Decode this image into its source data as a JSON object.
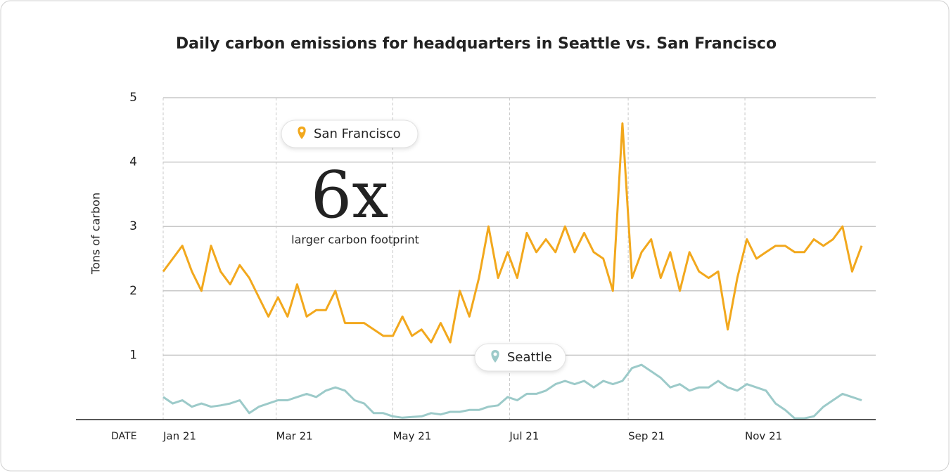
{
  "chart_data": {
    "type": "line",
    "title": "Daily carbon emissions for headquarters in Seattle vs. San Francisco",
    "x_label": "DATE",
    "y_label": "Tons of carbon",
    "annotations": {
      "big": "6x",
      "small": "larger carbon footprint"
    },
    "x": [
      0,
      5,
      10,
      15,
      20,
      25,
      30,
      35,
      40,
      45,
      50,
      55,
      60,
      65,
      70,
      75,
      80,
      85,
      90,
      95,
      100,
      105,
      110,
      115,
      120,
      125,
      130,
      135,
      140,
      145,
      150,
      155,
      160,
      165,
      170,
      175,
      180,
      185,
      190,
      195,
      200,
      205,
      210,
      215,
      220,
      225,
      230,
      235,
      240,
      245,
      250,
      255,
      260,
      265,
      270,
      275,
      280,
      285,
      290,
      295,
      300,
      305,
      310,
      315,
      320,
      325,
      330,
      335,
      340,
      345,
      350,
      355,
      360,
      365
    ],
    "series": [
      {
        "name": "San Francisco",
        "color": "#f2a81d",
        "values": [
          2.3,
          2.5,
          2.7,
          2.3,
          2.0,
          2.7,
          2.3,
          2.1,
          2.4,
          2.2,
          1.9,
          1.6,
          1.9,
          1.6,
          2.1,
          1.6,
          1.7,
          1.7,
          2.0,
          1.5,
          1.5,
          1.5,
          1.4,
          1.3,
          1.3,
          1.6,
          1.3,
          1.4,
          1.2,
          1.5,
          1.2,
          2.0,
          1.6,
          2.2,
          3.0,
          2.2,
          2.6,
          2.2,
          2.9,
          2.6,
          2.8,
          2.6,
          3.0,
          2.6,
          2.9,
          2.6,
          2.5,
          2.0,
          4.6,
          2.2,
          2.6,
          2.8,
          2.2,
          2.6,
          2.0,
          2.6,
          2.3,
          2.2,
          2.3,
          1.4,
          2.2,
          2.8,
          2.5,
          2.6,
          2.7,
          2.7,
          2.6,
          2.6,
          2.8,
          2.7,
          2.8,
          3.0,
          2.3,
          2.7
        ]
      },
      {
        "name": "Seattle",
        "color": "#9ccac9",
        "values": [
          0.35,
          0.25,
          0.3,
          0.2,
          0.25,
          0.2,
          0.22,
          0.25,
          0.3,
          0.1,
          0.2,
          0.25,
          0.3,
          0.3,
          0.35,
          0.4,
          0.35,
          0.45,
          0.5,
          0.45,
          0.3,
          0.25,
          0.1,
          0.1,
          0.05,
          0.03,
          0.04,
          0.05,
          0.1,
          0.08,
          0.12,
          0.12,
          0.15,
          0.15,
          0.2,
          0.22,
          0.35,
          0.3,
          0.4,
          0.4,
          0.45,
          0.55,
          0.6,
          0.55,
          0.6,
          0.5,
          0.6,
          0.55,
          0.6,
          0.8,
          0.85,
          0.75,
          0.65,
          0.5,
          0.55,
          0.45,
          0.5,
          0.5,
          0.6,
          0.5,
          0.45,
          0.55,
          0.5,
          0.45,
          0.25,
          0.15,
          0.02,
          0.02,
          0.05,
          0.2,
          0.3,
          0.4,
          0.35,
          0.3
        ]
      }
    ],
    "xlim": [
      0,
      365
    ],
    "xticks": [
      {
        "value": 0,
        "label": "Jan 21"
      },
      {
        "value": 59,
        "label": "Mar 21"
      },
      {
        "value": 120,
        "label": "May 21"
      },
      {
        "value": 181,
        "label": "Jul 21"
      },
      {
        "value": 243,
        "label": "Sep 21"
      },
      {
        "value": 304,
        "label": "Nov 21"
      }
    ],
    "ylim": [
      0,
      5
    ],
    "yticks": [
      1,
      2,
      3,
      4,
      5
    ],
    "grid": true
  }
}
